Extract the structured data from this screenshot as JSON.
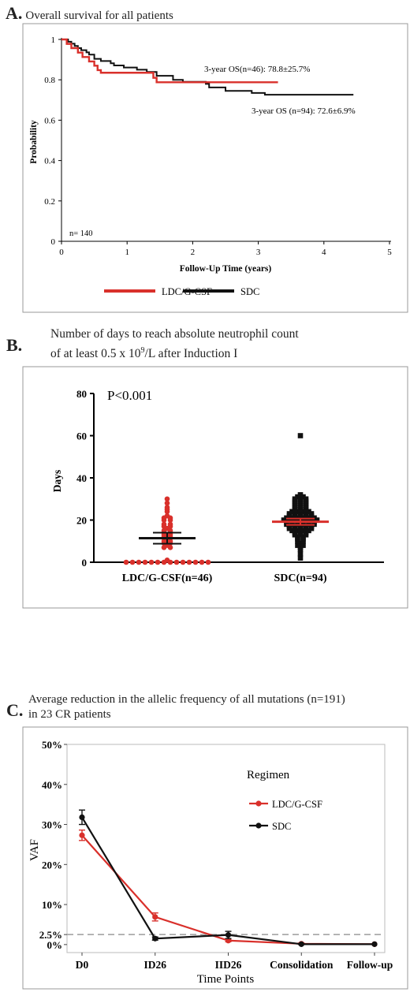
{
  "panels": {
    "a": {
      "letter": "A.",
      "title": "Overall survival for all patients"
    },
    "b": {
      "letter": "B.",
      "title_line1": "Number of days to reach absolute neutrophil count",
      "title_line2_pre": "of at least 0.5 x 10",
      "title_line2_sup": "9",
      "title_line2_post": "/L after Induction I"
    },
    "c": {
      "letter": "C.",
      "title_line1": "Average reduction in the allelic frequency of all mutations (n=191)",
      "title_line2": "in 23 CR patients"
    }
  },
  "chart_data": [
    {
      "type": "line",
      "subtype": "kaplan-meier",
      "xlabel": "Follow-Up Time (years)",
      "ylabel": "Probability",
      "xlim": [
        0,
        5
      ],
      "ylim": [
        0,
        1
      ],
      "xticks": [
        "0",
        "1",
        "2",
        "3",
        "4",
        "5"
      ],
      "yticks": [
        "0",
        "0.2",
        "0.4",
        "0.6",
        "0.8",
        "1"
      ],
      "annotations": {
        "n": "n= 140",
        "red": "3-year OS(n=46): 78.8±25.7%",
        "black": "3-year OS (n=94): 72.6±6.9%"
      },
      "legend": [
        "LDC/G-CSF",
        "SDC"
      ],
      "colors": {
        "LDC/G-CSF": "#d9302b",
        "SDC": "#111111"
      },
      "series": [
        {
          "name": "LDC/G-CSF",
          "steps": [
            [
              0,
              1
            ],
            [
              0.08,
              0.978
            ],
            [
              0.15,
              0.957
            ],
            [
              0.25,
              0.935
            ],
            [
              0.32,
              0.913
            ],
            [
              0.42,
              0.891
            ],
            [
              0.5,
              0.87
            ],
            [
              0.55,
              0.848
            ],
            [
              0.6,
              0.835
            ],
            [
              1.4,
              0.81
            ],
            [
              1.45,
              0.788
            ],
            [
              3.3,
              0.788
            ]
          ]
        },
        {
          "name": "SDC",
          "steps": [
            [
              0,
              1
            ],
            [
              0.1,
              0.989
            ],
            [
              0.15,
              0.979
            ],
            [
              0.2,
              0.968
            ],
            [
              0.25,
              0.957
            ],
            [
              0.3,
              0.947
            ],
            [
              0.38,
              0.936
            ],
            [
              0.42,
              0.925
            ],
            [
              0.5,
              0.904
            ],
            [
              0.6,
              0.893
            ],
            [
              0.75,
              0.882
            ],
            [
              0.8,
              0.871
            ],
            [
              0.95,
              0.861
            ],
            [
              1.15,
              0.85
            ],
            [
              1.3,
              0.839
            ],
            [
              1.45,
              0.82
            ],
            [
              1.7,
              0.8
            ],
            [
              1.85,
              0.79
            ],
            [
              2.2,
              0.78
            ],
            [
              2.25,
              0.762
            ],
            [
              2.5,
              0.745
            ],
            [
              2.9,
              0.735
            ],
            [
              3.1,
              0.726
            ],
            [
              4.45,
              0.726
            ]
          ]
        }
      ]
    },
    {
      "type": "scatter",
      "subtype": "dot-plot",
      "annotation": "P<0.001",
      "ylabel": "Days",
      "ylim": [
        0,
        80
      ],
      "yticks": [
        "0",
        "20",
        "40",
        "60",
        "80"
      ],
      "categories": [
        "LDC/G-CSF(n=46)",
        "SDC(n=94)"
      ],
      "colors": {
        "LDC/G-CSF(n=46)": "#d9302b",
        "SDC(n=94)": "#111111",
        "sdc_mean_line": "#d9302b",
        "ldc_mean_line": "#111111"
      },
      "series": [
        {
          "category": "LDC/G-CSF(n=46)",
          "mean": 11.4,
          "ci": [
            8.8,
            14.0
          ],
          "values": [
            0,
            0,
            0,
            0,
            0,
            0,
            0,
            0,
            0,
            0,
            0,
            0,
            0,
            0,
            1,
            7,
            7,
            8,
            9,
            9,
            10,
            10,
            11,
            12,
            12,
            13,
            13,
            14,
            14,
            15,
            15,
            16,
            17,
            17,
            18,
            18,
            20,
            20,
            21,
            21,
            22,
            24,
            25,
            26,
            28,
            30
          ]
        },
        {
          "category": "SDC(n=94)",
          "mean": 19.2,
          "ci": [
            17.7,
            20.7
          ],
          "values": [
            2,
            4,
            6,
            7,
            8,
            8,
            9,
            10,
            10,
            11,
            11,
            12,
            12,
            13,
            13,
            13,
            14,
            14,
            14,
            15,
            15,
            15,
            15,
            16,
            16,
            16,
            16,
            16,
            17,
            17,
            17,
            17,
            17,
            18,
            18,
            18,
            18,
            18,
            18,
            19,
            19,
            19,
            19,
            19,
            19,
            20,
            20,
            20,
            20,
            20,
            20,
            20,
            21,
            21,
            21,
            21,
            21,
            21,
            22,
            22,
            22,
            22,
            22,
            23,
            23,
            23,
            23,
            23,
            24,
            24,
            24,
            24,
            25,
            25,
            25,
            26,
            26,
            26,
            27,
            27,
            27,
            28,
            28,
            28,
            29,
            29,
            29,
            30,
            30,
            30,
            31,
            31,
            32,
            60
          ]
        }
      ]
    },
    {
      "type": "line",
      "xlabel": "Time Points",
      "ylabel": "VAF",
      "ylim": [
        -2,
        50
      ],
      "yticks": [
        "0%",
        "2.5%",
        "10%",
        "20%",
        "30%",
        "40%",
        "50%"
      ],
      "categories": [
        "D0",
        "ID26",
        "IID26",
        "Consolidation",
        "Follow-up"
      ],
      "reference_line": 2.5,
      "legend_title": "Regimen",
      "legend": [
        "LDC/G-CSF",
        "SDC"
      ],
      "colors": {
        "LDC/G-CSF": "#d9302b",
        "SDC": "#111111",
        "reference": "#aaaaaa"
      },
      "series": [
        {
          "name": "LDC/G-CSF",
          "values": [
            27.3,
            6.9,
            1.0,
            0.2,
            0.1
          ],
          "err": [
            1.3,
            1.0,
            0.3,
            0.2,
            0
          ]
        },
        {
          "name": "SDC",
          "values": [
            31.8,
            1.5,
            2.4,
            0.1,
            0.1
          ],
          "err": [
            1.8,
            0.4,
            0.9,
            0.1,
            0
          ]
        }
      ]
    }
  ]
}
